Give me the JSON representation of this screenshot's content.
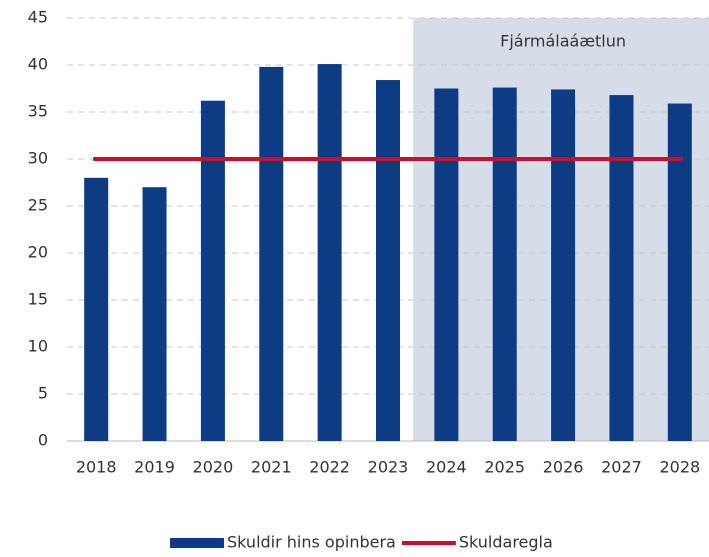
{
  "chart_data": {
    "type": "bar",
    "categories": [
      "2018",
      "2019",
      "2020",
      "2021",
      "2022",
      "2023",
      "2024",
      "2025",
      "2026",
      "2027",
      "2028"
    ],
    "series": [
      {
        "name": "Skuldir hins opinbera",
        "type": "bar",
        "color": "#0d3b84",
        "values": [
          28,
          27,
          36.2,
          39.8,
          40.1,
          38.4,
          37.5,
          37.6,
          37.4,
          36.8,
          35.9
        ]
      },
      {
        "name": "Skuldaregla",
        "type": "line",
        "color": "#c8102e",
        "values": [
          30,
          30,
          30,
          30,
          30,
          30,
          30,
          30,
          30,
          30,
          30
        ]
      }
    ],
    "annotation": {
      "text": "Fjármálaáætlun",
      "start": "2024",
      "color": "#d6dde9"
    },
    "ylim": [
      0,
      45
    ],
    "yticks": [
      0,
      5,
      10,
      15,
      20,
      25,
      30,
      35,
      40,
      45
    ],
    "grid": true,
    "legend": "bottom"
  }
}
